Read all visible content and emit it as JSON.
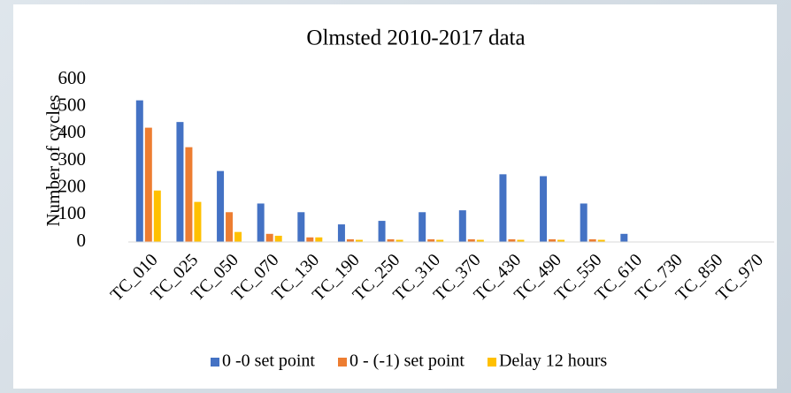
{
  "chart_data": {
    "type": "bar",
    "title": "Olmsted 2010-2017 data",
    "y_label": "Number of cycles",
    "categories": [
      "TC_010",
      "TC_025",
      "TC_050",
      "TC_070",
      "TC_130",
      "TC_190",
      "TC_250",
      "TC_310",
      "TC_370",
      "TC_430",
      "TC_490",
      "TC_550",
      "TC_610",
      "TC_730",
      "TC_850",
      "TC_970"
    ],
    "series": [
      {
        "name": "0 -0 set point",
        "color": "#4472c4",
        "values": [
          523,
          443,
          262,
          142,
          110,
          65,
          78,
          110,
          117,
          250,
          243,
          142,
          30,
          0,
          0,
          0
        ]
      },
      {
        "name": "0 - (-1) set point",
        "color": "#ed7d31",
        "values": [
          422,
          350,
          110,
          30,
          17,
          10,
          10,
          10,
          10,
          10,
          10,
          10,
          0,
          0,
          0,
          0
        ]
      },
      {
        "name": "Delay 12 hours",
        "color": "#ffc000",
        "values": [
          190,
          148,
          37,
          23,
          17,
          8,
          8,
          8,
          8,
          8,
          8,
          8,
          0,
          0,
          0,
          0
        ]
      }
    ],
    "ylim": [
      0,
      600
    ],
    "yticks": [
      0,
      100,
      200,
      300,
      400,
      500,
      600
    ],
    "grid": false,
    "legend": "bottom"
  }
}
